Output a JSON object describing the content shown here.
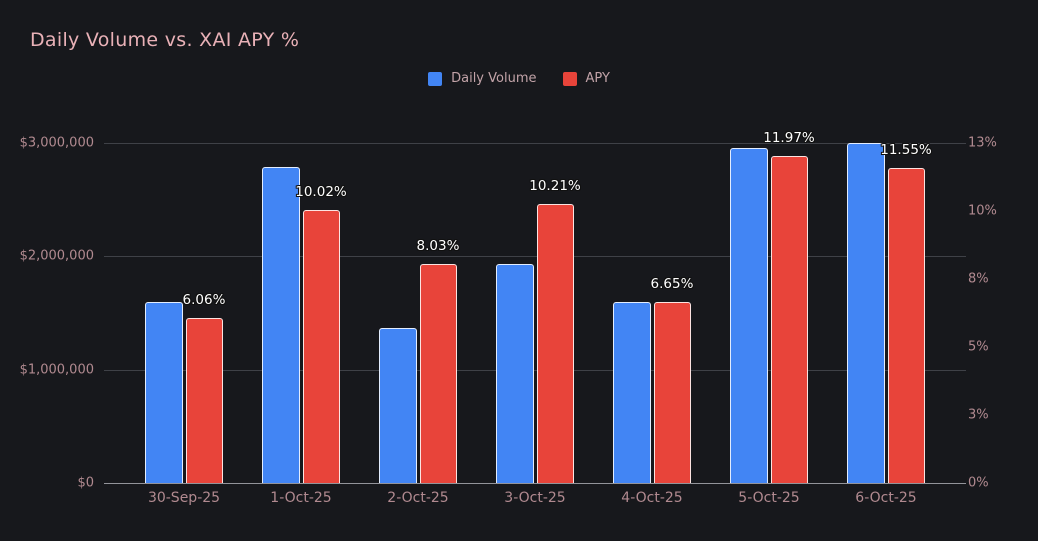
{
  "title": "Daily Volume vs. XAI APY %",
  "legend": {
    "items": [
      {
        "label": "Daily Volume",
        "color": "#4285f4"
      },
      {
        "label": "APY",
        "color": "#e8443a"
      }
    ]
  },
  "colors": {
    "background": "#17181c",
    "title_text": "#e9b1b7",
    "axis_text": "#b18a90",
    "legend_text": "#c2a3a8",
    "gridline": "#3f4147",
    "axis_line": "#93949a",
    "volume_bar": "#4285f4",
    "apy_bar": "#e8443a",
    "bar_border": "rgba(255,255,255,0.85)",
    "data_label_text": "#ffffff"
  },
  "chart_data": {
    "type": "bar",
    "title": "Daily Volume vs. XAI APY %",
    "categories": [
      "30-Sep-25",
      "1-Oct-25",
      "2-Oct-25",
      "3-Oct-25",
      "4-Oct-25",
      "5-Oct-25",
      "6-Oct-25"
    ],
    "series": [
      {
        "name": "Daily Volume",
        "axis": "left",
        "color": "#4285f4",
        "values": [
          1600000,
          2790000,
          1370000,
          1930000,
          1600000,
          2960000,
          3000000
        ]
      },
      {
        "name": "APY",
        "axis": "right",
        "color": "#e8443a",
        "values": [
          6.06,
          10.02,
          8.03,
          10.21,
          6.65,
          11.97,
          11.55
        ],
        "data_labels": [
          "6.06%",
          "10.02%",
          "8.03%",
          "10.21%",
          "6.65%",
          "11.97%",
          "11.55%"
        ]
      }
    ],
    "axes": {
      "left": {
        "min": 0,
        "max": 3000000,
        "tick_labels": [
          "$3,000,000",
          "$2,000,000",
          "$1,000,000",
          "$0"
        ]
      },
      "right": {
        "min": 0,
        "max": 13,
        "tick_labels": [
          "13%",
          "10%",
          "8%",
          "5%",
          "3%",
          "0%"
        ],
        "effective_bar_scale_max": 12.46
      }
    },
    "grid": "horizontal-only",
    "legend_position": "top-center"
  }
}
